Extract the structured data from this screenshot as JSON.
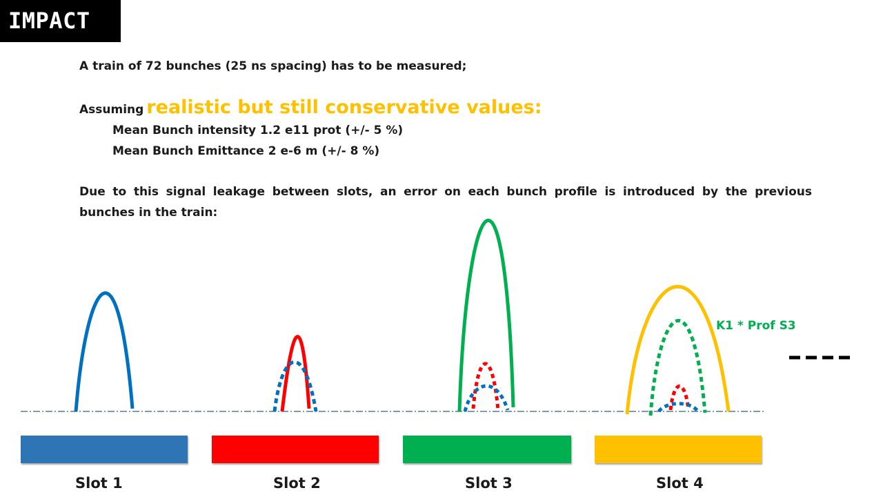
{
  "header": {
    "title": "IMPACT"
  },
  "intro": {
    "line1": "A train of 72 bunches (25 ns spacing) has to be measured;",
    "assuming": "Assuming",
    "assuming_highlight": "realistic but still conservative values:",
    "intensity": "Mean Bunch intensity 1.2 e11 prot (+/- 5 %)",
    "emittance": "Mean Bunch Emittance 2 e-6 m (+/- 8 %)",
    "paragraph": "Due to this signal leakage between slots, an error on each bunch profile is introduced by the previous bunches in the train:"
  },
  "annotation": {
    "k1_label": "K1 * Prof S3"
  },
  "slots": [
    {
      "label": "Slot 1",
      "color": "#2e75b6"
    },
    {
      "label": "Slot 2",
      "color": "#ff0000"
    },
    {
      "label": "Slot 3",
      "color": "#00b050"
    },
    {
      "label": "Slot 4",
      "color": "#ffc000"
    }
  ],
  "colors": {
    "blue": "#0070c0",
    "red": "#ff0000",
    "green": "#00b050",
    "yellow": "#ffc000",
    "highlight": "#ffc000",
    "baseline": "#2e5f8a"
  }
}
